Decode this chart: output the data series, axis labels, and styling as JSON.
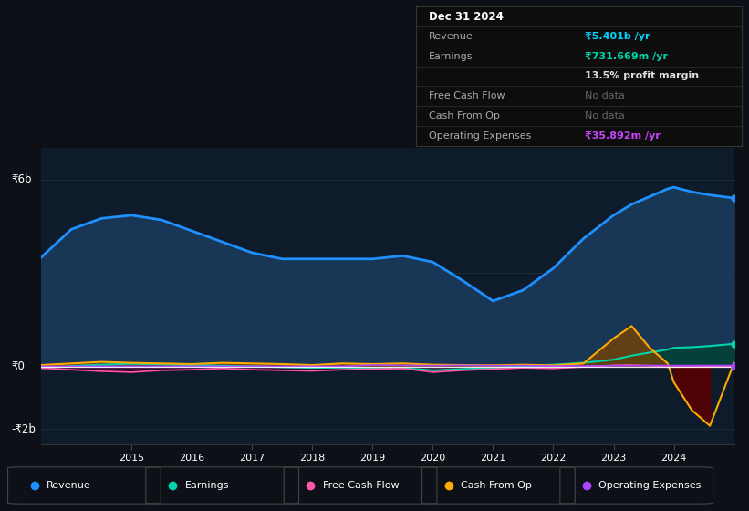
{
  "bg_color": "#0d1117",
  "plot_bg_color": "#0d1b2a",
  "ylabel_top": "₹6b",
  "ylabel_zero": "₹0",
  "ylabel_neg": "-₹2b",
  "years": [
    2013.5,
    2014,
    2014.5,
    2015,
    2015.5,
    2016,
    2016.5,
    2017,
    2017.5,
    2018,
    2018.5,
    2019,
    2019.5,
    2020,
    2020.5,
    2021,
    2021.5,
    2022,
    2022.5,
    2023,
    2023.3,
    2023.6,
    2023.9,
    2024,
    2024.3,
    2024.6,
    2025
  ],
  "revenue": [
    3.5,
    4.4,
    4.75,
    4.85,
    4.7,
    4.35,
    4.0,
    3.65,
    3.45,
    3.45,
    3.45,
    3.45,
    3.55,
    3.35,
    2.75,
    2.1,
    2.45,
    3.15,
    4.1,
    4.85,
    5.2,
    5.45,
    5.7,
    5.75,
    5.6,
    5.5,
    5.4
  ],
  "earnings": [
    -0.05,
    0.02,
    0.06,
    0.09,
    0.07,
    0.05,
    0.03,
    0.01,
    -0.02,
    -0.04,
    -0.03,
    -0.04,
    -0.05,
    -0.12,
    -0.08,
    -0.04,
    0.01,
    0.06,
    0.12,
    0.22,
    0.35,
    0.45,
    0.55,
    0.6,
    0.62,
    0.66,
    0.73
  ],
  "free_cash_flow": [
    -0.05,
    -0.1,
    -0.15,
    -0.18,
    -0.12,
    -0.1,
    -0.06,
    -0.1,
    -0.12,
    -0.14,
    -0.1,
    -0.08,
    -0.06,
    -0.18,
    -0.12,
    -0.08,
    -0.04,
    -0.06,
    -0.01,
    0.04,
    0.05,
    0.03,
    -0.02,
    -0.01,
    -0.01,
    0.0,
    0.0
  ],
  "cash_from_op": [
    0.05,
    0.1,
    0.15,
    0.12,
    0.1,
    0.08,
    0.12,
    0.1,
    0.08,
    0.05,
    0.1,
    0.08,
    0.1,
    0.06,
    0.05,
    0.04,
    0.06,
    0.04,
    0.1,
    0.9,
    1.3,
    0.6,
    0.1,
    -0.5,
    -1.4,
    -1.9,
    0.12
  ],
  "operating_expenses": [
    0.01,
    0.01,
    0.01,
    0.01,
    0.01,
    0.01,
    0.01,
    0.01,
    0.01,
    0.01,
    0.01,
    0.05,
    0.04,
    0.03,
    0.04,
    0.03,
    0.03,
    0.02,
    0.02,
    0.03,
    0.03,
    0.035,
    0.035,
    0.035,
    0.035,
    0.035,
    0.035
  ],
  "revenue_color": "#1e90ff",
  "revenue_fill": "#1a3a5c",
  "earnings_color": "#00d4aa",
  "earnings_fill": "#004433",
  "free_cash_flow_color": "#ff55aa",
  "free_cash_flow_fill": "#550033",
  "cash_from_op_color": "#ffaa00",
  "cash_from_op_fill_pos": "#7a4400",
  "cash_from_op_fill_neg": "#5a0000",
  "operating_expenses_color": "#aa44ff",
  "ylim_min": -2.5,
  "ylim_max": 7.0,
  "xticks": [
    2015,
    2016,
    2017,
    2018,
    2019,
    2020,
    2021,
    2022,
    2023,
    2024
  ],
  "xtick_labels": [
    "2015",
    "2016",
    "2017",
    "2018",
    "2019",
    "2020",
    "2021",
    "2022",
    "2023",
    "2024"
  ],
  "table_rows": [
    {
      "label": "Dec 31 2024",
      "value": "",
      "label_color": "#ffffff",
      "value_color": "#ffffff",
      "bold_label": true,
      "bold_value": false
    },
    {
      "label": "Revenue",
      "value": "₹5.401b /yr",
      "label_color": "#aaaaaa",
      "value_color": "#00d4ff",
      "bold_label": false,
      "bold_value": true
    },
    {
      "label": "Earnings",
      "value": "₹731.669m /yr",
      "label_color": "#aaaaaa",
      "value_color": "#00d4aa",
      "bold_label": false,
      "bold_value": true
    },
    {
      "label": "",
      "value": "13.5% profit margin",
      "label_color": "#aaaaaa",
      "value_color": "#dddddd",
      "bold_label": false,
      "bold_value": true
    },
    {
      "label": "Free Cash Flow",
      "value": "No data",
      "label_color": "#aaaaaa",
      "value_color": "#666666",
      "bold_label": false,
      "bold_value": false
    },
    {
      "label": "Cash From Op",
      "value": "No data",
      "label_color": "#aaaaaa",
      "value_color": "#666666",
      "bold_label": false,
      "bold_value": false
    },
    {
      "label": "Operating Expenses",
      "value": "₹35.892m /yr",
      "label_color": "#aaaaaa",
      "value_color": "#cc44ff",
      "bold_label": false,
      "bold_value": true
    }
  ],
  "legend_items": [
    {
      "label": "Revenue",
      "color": "#1e90ff"
    },
    {
      "label": "Earnings",
      "color": "#00d4aa"
    },
    {
      "label": "Free Cash Flow",
      "color": "#ff55aa"
    },
    {
      "label": "Cash From Op",
      "color": "#ffaa00"
    },
    {
      "label": "Operating Expenses",
      "color": "#aa44ff"
    }
  ]
}
